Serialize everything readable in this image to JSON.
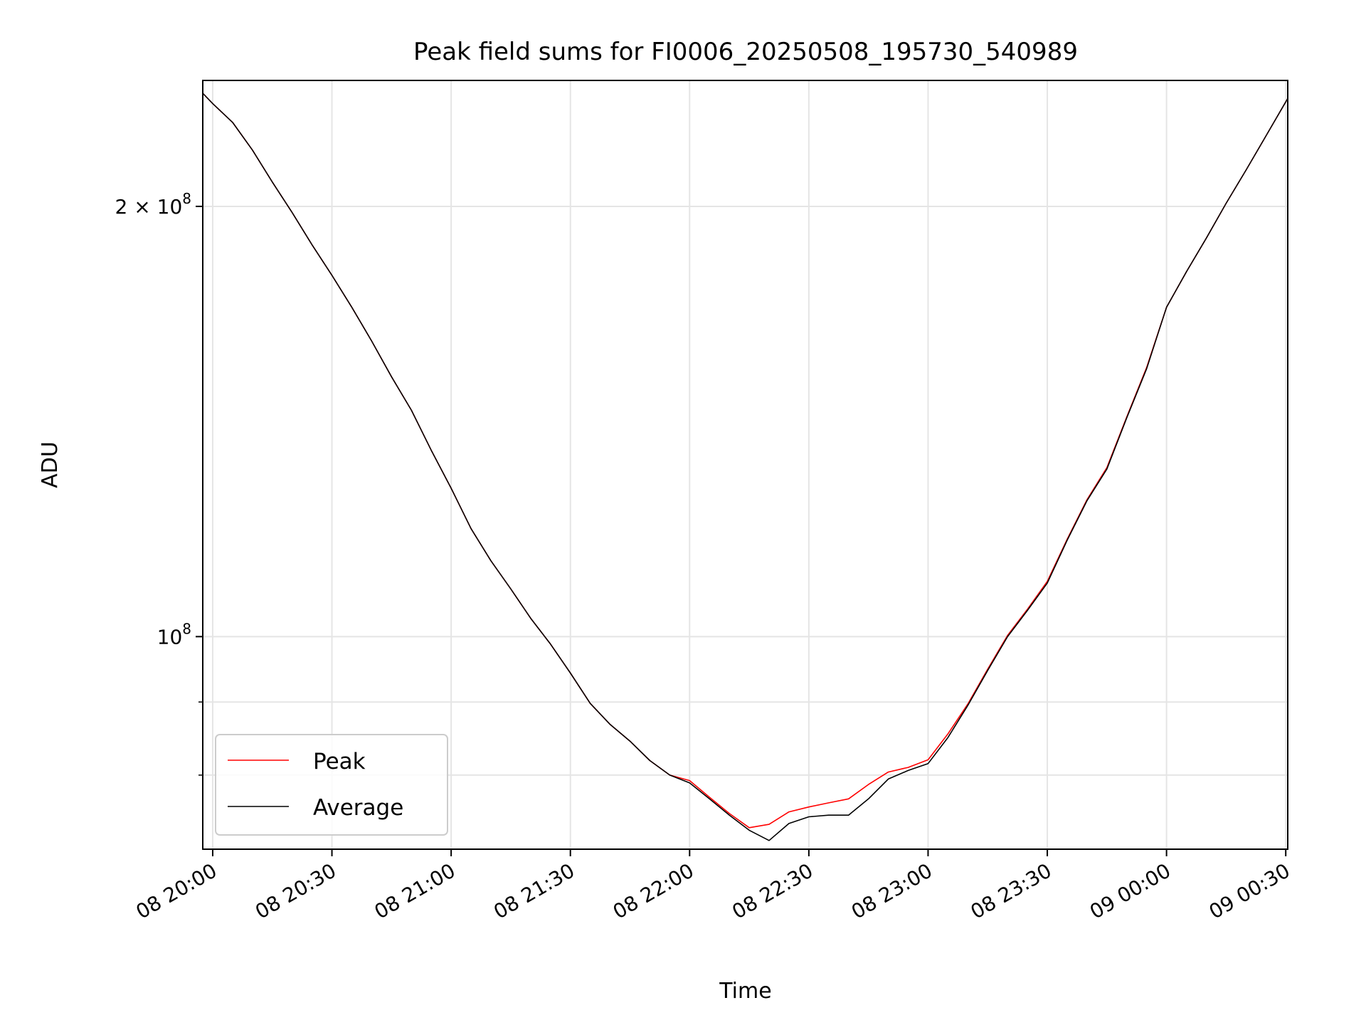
{
  "chart_data": {
    "type": "line",
    "title": "Peak field sums for FI0006_20250508_195730_540989",
    "xlabel": "Time",
    "ylabel": "ADU",
    "yscale": "log",
    "ylim": [
      71000000,
      245000000
    ],
    "xlim": [
      "2025-05-08 19:57:30",
      "2025-05-09 00:30:30"
    ],
    "grid": true,
    "legend_position": "lower left",
    "x_ticks": [
      {
        "t": "2025-05-08 20:00",
        "label": "08 20:00"
      },
      {
        "t": "2025-05-08 20:30",
        "label": "08 20:30"
      },
      {
        "t": "2025-05-08 21:00",
        "label": "08 21:00"
      },
      {
        "t": "2025-05-08 21:30",
        "label": "08 21:30"
      },
      {
        "t": "2025-05-08 22:00",
        "label": "08 22:00"
      },
      {
        "t": "2025-05-08 22:30",
        "label": "08 22:30"
      },
      {
        "t": "2025-05-08 23:00",
        "label": "08 23:00"
      },
      {
        "t": "2025-05-08 23:30",
        "label": "08 23:30"
      },
      {
        "t": "2025-05-09 00:00",
        "label": "09 00:00"
      },
      {
        "t": "2025-05-09 00:30",
        "label": "09 00:30"
      }
    ],
    "y_major_ticks": [
      {
        "value": 100000000,
        "base": "10",
        "exp": "8"
      },
      {
        "value": 200000000,
        "mant": "2",
        "times": "×",
        "base": "10",
        "exp": "8"
      }
    ],
    "y_minor_ticks": [
      80000000,
      90000000
    ],
    "series": [
      {
        "name": "Peak",
        "color": "#ff0000",
        "x": [
          "2025-05-08 19:57:30",
          "2025-05-08 20:00",
          "2025-05-08 20:05",
          "2025-05-08 20:10",
          "2025-05-08 20:15",
          "2025-05-08 20:20",
          "2025-05-08 20:25",
          "2025-05-08 20:30",
          "2025-05-08 20:35",
          "2025-05-08 20:40",
          "2025-05-08 20:45",
          "2025-05-08 20:50",
          "2025-05-08 20:55",
          "2025-05-08 21:00",
          "2025-05-08 21:05",
          "2025-05-08 21:10",
          "2025-05-08 21:15",
          "2025-05-08 21:20",
          "2025-05-08 21:25",
          "2025-05-08 21:30",
          "2025-05-08 21:35",
          "2025-05-08 21:40",
          "2025-05-08 21:45",
          "2025-05-08 21:50",
          "2025-05-08 21:55",
          "2025-05-08 22:00",
          "2025-05-08 22:05",
          "2025-05-08 22:10",
          "2025-05-08 22:15",
          "2025-05-08 22:20",
          "2025-05-08 22:25",
          "2025-05-08 22:30",
          "2025-05-08 22:35",
          "2025-05-08 22:40",
          "2025-05-08 22:45",
          "2025-05-08 22:50",
          "2025-05-08 22:55",
          "2025-05-08 23:00",
          "2025-05-08 23:05",
          "2025-05-08 23:10",
          "2025-05-08 23:15",
          "2025-05-08 23:20",
          "2025-05-08 23:25",
          "2025-05-08 23:30",
          "2025-05-08 23:35",
          "2025-05-08 23:40",
          "2025-05-08 23:45",
          "2025-05-08 23:50",
          "2025-05-08 23:55",
          "2025-05-09 00:00",
          "2025-05-09 00:05",
          "2025-05-09 00:10",
          "2025-05-09 00:15",
          "2025-05-09 00:20",
          "2025-05-09 00:25",
          "2025-05-09 00:30:30"
        ],
        "values": [
          240000000,
          236000000,
          229000000,
          219000000,
          208000000,
          198000000,
          188000000,
          179000000,
          170000000,
          161000000,
          152000000,
          144000000,
          135000000,
          127000000,
          119000000,
          113000000,
          108000000,
          103000000,
          98800000,
          94300000,
          89800000,
          86800000,
          84500000,
          81900000,
          80000000,
          79300000,
          77200000,
          75200000,
          73500000,
          73900000,
          75400000,
          76000000,
          76500000,
          77000000,
          78800000,
          80400000,
          81000000,
          82000000,
          85500000,
          89700000,
          94900000,
          100200000,
          104500000,
          109300000,
          117000000,
          124700000,
          131300000,
          142500000,
          154300000,
          170000000,
          180000000,
          190000000,
          201000000,
          212000000,
          224000000,
          238000000
        ]
      },
      {
        "name": "Average",
        "color": "#000000",
        "x": [
          "2025-05-08 19:57:30",
          "2025-05-08 20:00",
          "2025-05-08 20:05",
          "2025-05-08 20:10",
          "2025-05-08 20:15",
          "2025-05-08 20:20",
          "2025-05-08 20:25",
          "2025-05-08 20:30",
          "2025-05-08 20:35",
          "2025-05-08 20:40",
          "2025-05-08 20:45",
          "2025-05-08 20:50",
          "2025-05-08 20:55",
          "2025-05-08 21:00",
          "2025-05-08 21:05",
          "2025-05-08 21:10",
          "2025-05-08 21:15",
          "2025-05-08 21:20",
          "2025-05-08 21:25",
          "2025-05-08 21:30",
          "2025-05-08 21:35",
          "2025-05-08 21:40",
          "2025-05-08 21:45",
          "2025-05-08 21:50",
          "2025-05-08 21:55",
          "2025-05-08 22:00",
          "2025-05-08 22:05",
          "2025-05-08 22:10",
          "2025-05-08 22:15",
          "2025-05-08 22:20",
          "2025-05-08 22:25",
          "2025-05-08 22:30",
          "2025-05-08 22:35",
          "2025-05-08 22:40",
          "2025-05-08 22:45",
          "2025-05-08 22:50",
          "2025-05-08 22:55",
          "2025-05-08 23:00",
          "2025-05-08 23:05",
          "2025-05-08 23:10",
          "2025-05-08 23:15",
          "2025-05-08 23:20",
          "2025-05-08 23:25",
          "2025-05-08 23:30",
          "2025-05-08 23:35",
          "2025-05-08 23:40",
          "2025-05-08 23:45",
          "2025-05-08 23:50",
          "2025-05-08 23:55",
          "2025-05-09 00:00",
          "2025-05-09 00:05",
          "2025-05-09 00:10",
          "2025-05-09 00:15",
          "2025-05-09 00:20",
          "2025-05-09 00:25",
          "2025-05-09 00:30:30"
        ],
        "values": [
          240000000,
          236000000,
          229000000,
          219000000,
          208000000,
          198000000,
          188000000,
          179000000,
          170000000,
          161000000,
          152000000,
          144000000,
          135000000,
          127000000,
          119000000,
          113000000,
          108000000,
          103000000,
          98800000,
          94300000,
          89800000,
          86800000,
          84500000,
          81900000,
          80000000,
          79000000,
          77000000,
          75000000,
          73200000,
          72000000,
          74000000,
          74800000,
          75000000,
          75000000,
          77000000,
          79500000,
          80600000,
          81500000,
          85000000,
          89500000,
          94700000,
          100000000,
          104300000,
          109000000,
          116800000,
          124500000,
          131000000,
          142300000,
          154000000,
          170000000,
          180000000,
          190000000,
          201000000,
          212000000,
          224000000,
          238000000
        ]
      }
    ]
  }
}
